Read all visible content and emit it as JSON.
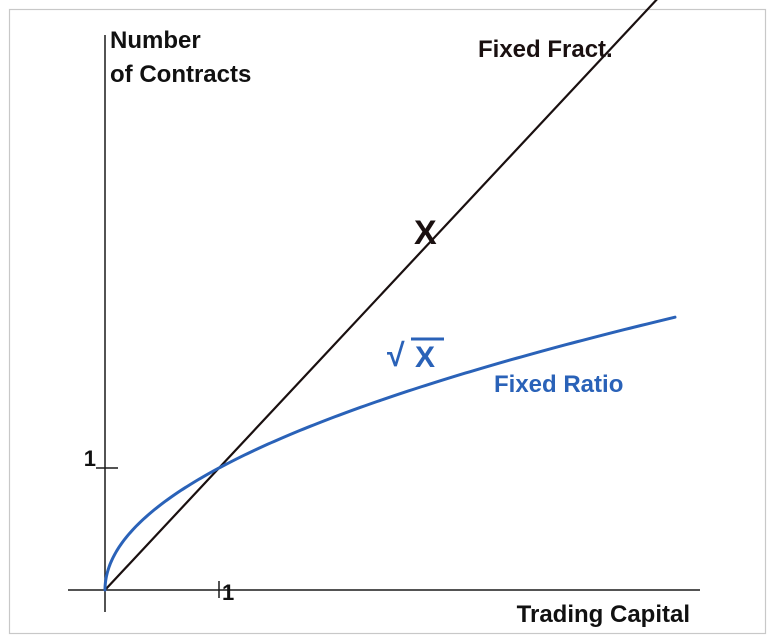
{
  "chart_data": {
    "type": "line",
    "title": "",
    "ylabel": [
      "Number",
      "of Contracts"
    ],
    "xlabel": "Trading Capital",
    "x_ticks": [
      {
        "value": 1,
        "label": "1"
      }
    ],
    "y_ticks": [
      {
        "value": 1,
        "label": "1"
      }
    ],
    "xlim": [
      0,
      5.1
    ],
    "ylim": [
      0,
      5.4
    ],
    "grid": false,
    "series": [
      {
        "name": "Fixed Fract.",
        "formula": "X",
        "color": "#1a1010",
        "x": [
          0,
          0.5,
          1,
          1.5,
          2,
          2.5,
          3,
          3.5,
          4,
          4.5,
          5.1
        ],
        "y": [
          0,
          0.5,
          1,
          1.5,
          2,
          2.5,
          3,
          3.5,
          4,
          4.5,
          5.1
        ]
      },
      {
        "name": "Fixed Ratio",
        "formula_prefix": "√",
        "formula": "X",
        "color": "#2a62b8",
        "x": [
          0,
          0.01,
          0.05,
          0.1,
          0.2,
          0.35,
          0.5,
          0.75,
          1,
          1.25,
          1.5,
          2,
          2.5,
          3,
          3.5,
          4,
          4.5,
          5
        ],
        "y": [
          0,
          0.1,
          0.224,
          0.316,
          0.447,
          0.592,
          0.707,
          0.866,
          1,
          1.118,
          1.225,
          1.414,
          1.581,
          1.732,
          1.871,
          2,
          2.121,
          2.236
        ]
      }
    ]
  }
}
